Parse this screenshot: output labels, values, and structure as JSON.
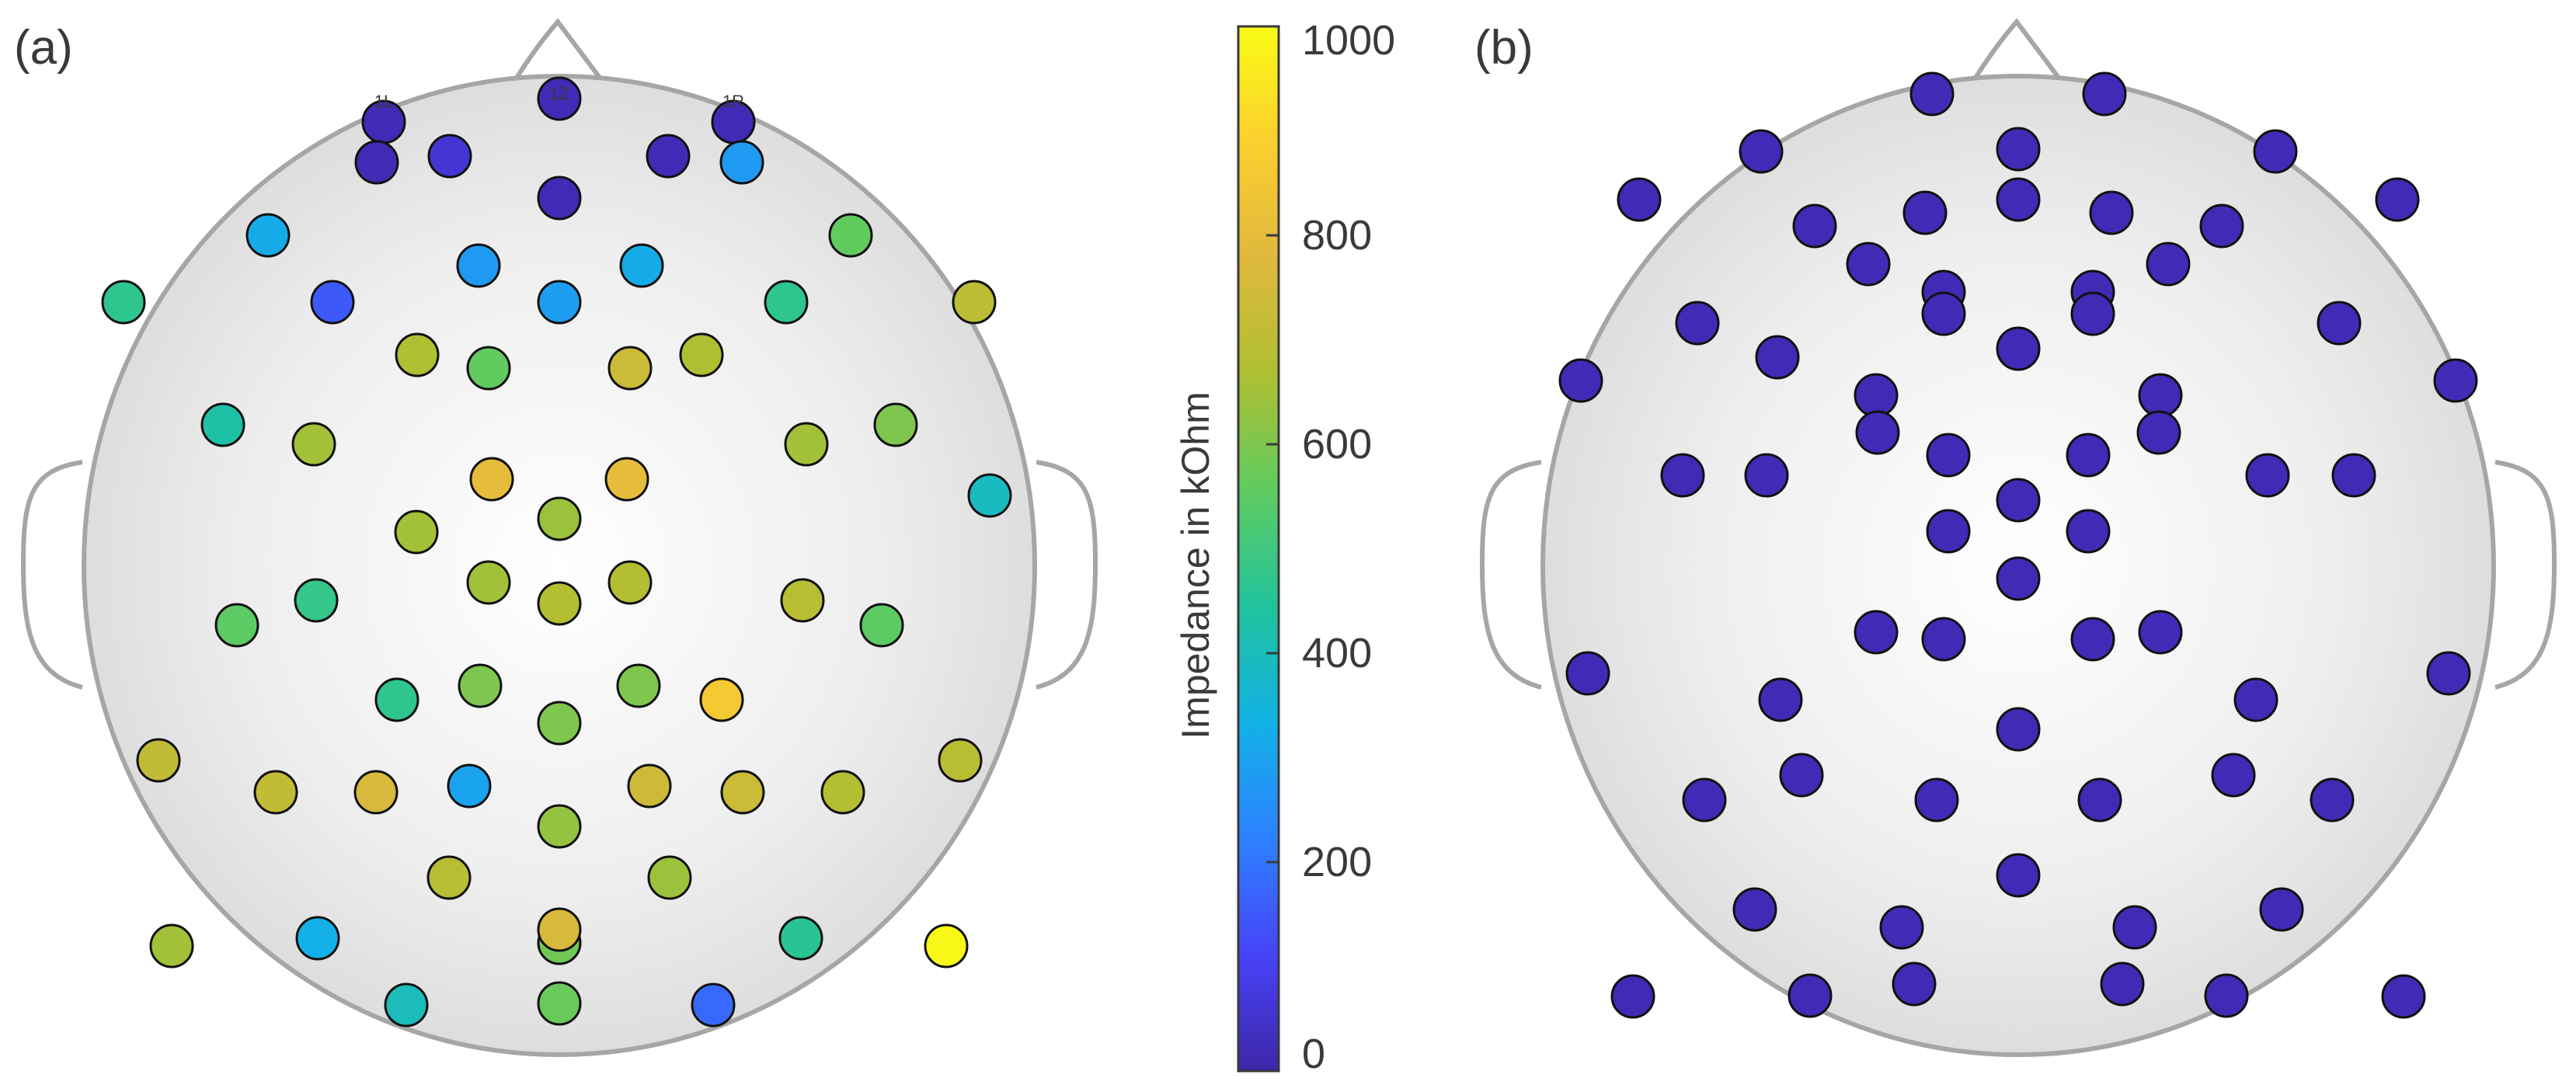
{
  "chart_data": {
    "type": "scatter",
    "panels": [
      {
        "label": "(a)"
      },
      {
        "label": "(b)"
      }
    ],
    "colorbar": {
      "label": "Impedance in kOhm",
      "range": [
        0,
        1000
      ],
      "ticks": [
        "0",
        "200",
        "400",
        "600",
        "800",
        "1000"
      ],
      "colormap": [
        "#3e26a8",
        "#4743f8",
        "#2d81ff",
        "#12b1e6",
        "#21c39d",
        "#5fcb60",
        "#aebf32",
        "#dfb83d",
        "#fbcf2f",
        "#f9fb15"
      ]
    },
    "electrode_labels": [
      "1L",
      "1Z",
      "1R"
    ],
    "panel_a_impedance_kohm": [
      20,
      20,
      20,
      20,
      60,
      20,
      20,
      280,
      320,
      280,
      320,
      560,
      470,
      150,
      290,
      470,
      700,
      670,
      560,
      730,
      670,
      430,
      650,
      650,
      600,
      800,
      800,
      650,
      640,
      390,
      650,
      680,
      680,
      550,
      480,
      690,
      550,
      470,
      600,
      600,
      860,
      600,
      710,
      710,
      760,
      300,
      740,
      730,
      680,
      690,
      630,
      690,
      640,
      580,
      650,
      330,
      760,
      460,
      990,
      400,
      570,
      180
    ],
    "panel_b_impedance_kohm": [
      20,
      20,
      20,
      20,
      20,
      20,
      20,
      20,
      20,
      20,
      20,
      20,
      20,
      20,
      20,
      20,
      20,
      20,
      20,
      20,
      20,
      20,
      20,
      20,
      20,
      20,
      20,
      20,
      20,
      20,
      20,
      20,
      20,
      20,
      20,
      20,
      20,
      20,
      20,
      20,
      20,
      20,
      20,
      20,
      20,
      20,
      20,
      20,
      20,
      20,
      20,
      20,
      20,
      20,
      20,
      20,
      20,
      20,
      20,
      20,
      20,
      20,
      20,
      20
    ]
  }
}
